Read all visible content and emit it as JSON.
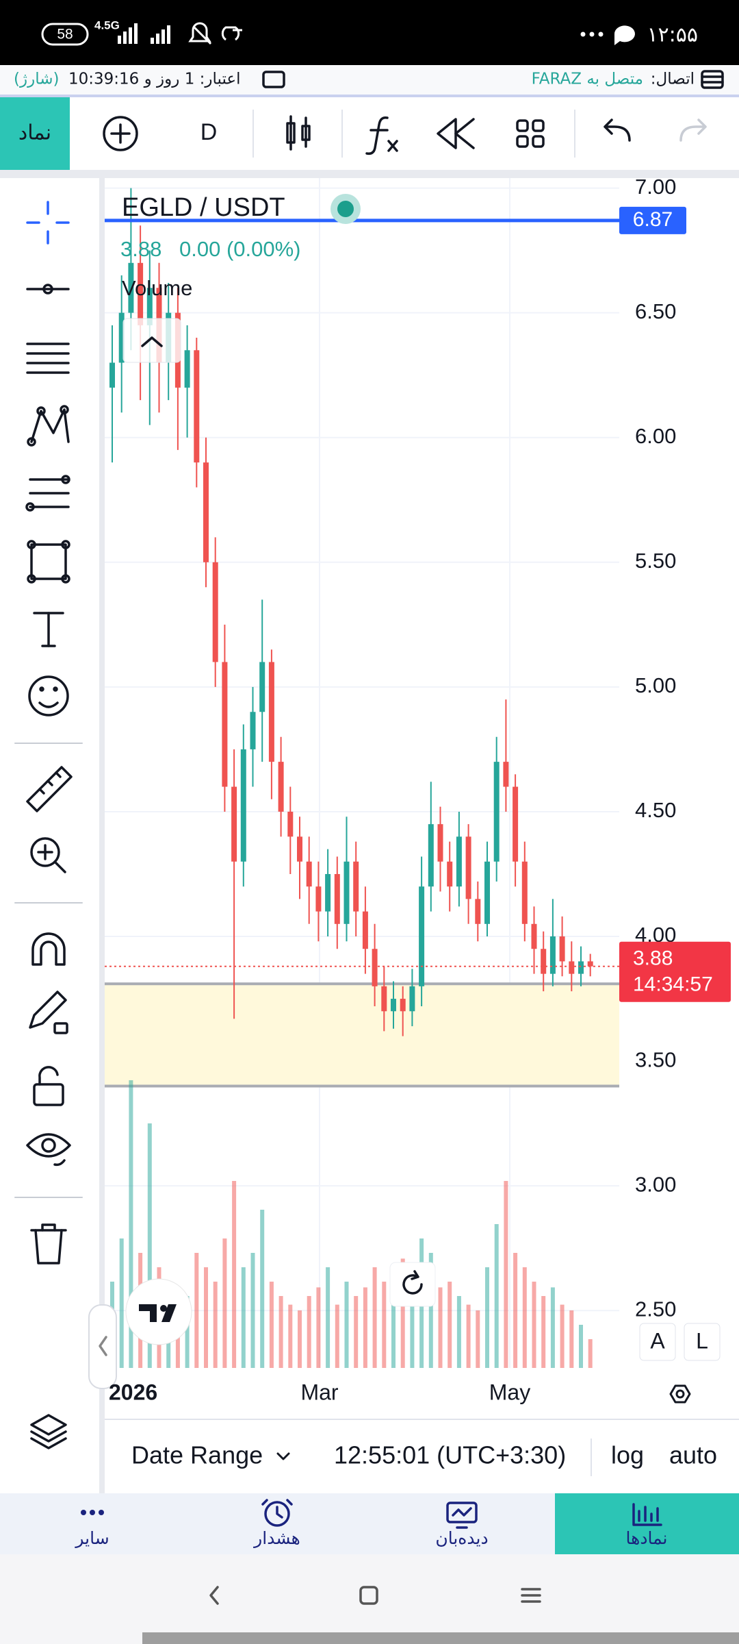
{
  "status_bar": {
    "battery": "58",
    "network": "4.5G",
    "time": "۱۲:۵۵"
  },
  "account_bar": {
    "credit_status": "(شارژ)",
    "credit": "اعتبار: 1 روز و 10:39:16",
    "connection_label": "اتصال:",
    "connection_status": "متصل به FARAZ"
  },
  "toolbar": {
    "symbol_button": "نماد",
    "interval": "D"
  },
  "chart_data": {
    "type": "candlestick",
    "symbol": "EGLD / USDT",
    "last": 3.88,
    "change": "0.00 (0.00%)",
    "volume_label": "Volume",
    "countdown": "14:34:57",
    "horizontal_line": 6.87,
    "zone": [
      3.4,
      3.81
    ],
    "colors": {
      "up": "#26a69a",
      "down": "#ef5350",
      "line": "#2962ff",
      "zone": "#fff9db"
    },
    "grid": true,
    "ylim": [
      2.27,
      7.04
    ],
    "yticks": [
      {
        "value": 7,
        "label": "7.00"
      },
      {
        "value": 6.5,
        "label": "6.50"
      },
      {
        "value": 6,
        "label": "6.00"
      },
      {
        "value": 5.5,
        "label": "5.50"
      },
      {
        "value": 5,
        "label": "5.00"
      },
      {
        "value": 4.5,
        "label": "4.50"
      },
      {
        "value": 4,
        "label": "4.00"
      },
      {
        "value": 3.5,
        "label": "3.50"
      },
      {
        "value": 3,
        "label": "3.00"
      },
      {
        "value": 2.5,
        "label": "2.50"
      }
    ],
    "x_labels": [
      "2026",
      "Mar",
      "May"
    ],
    "ohlc": {
      "open": [
        6.2,
        6.3,
        6.5,
        6.7,
        6.45,
        6.6,
        6.3,
        6.5,
        6.2,
        6.35,
        5.9,
        5.5,
        5.1,
        4.6,
        4.3,
        4.75,
        4.9,
        5.1,
        4.7,
        4.5,
        4.4,
        4.3,
        4.2,
        4.1,
        4.25,
        4.05,
        4.3,
        4.1,
        3.95,
        3.8,
        3.7,
        3.75,
        3.7,
        3.8,
        4.2,
        4.45,
        4.3,
        4.2,
        4.4,
        4.15,
        4.05,
        4.3,
        4.7,
        4.6,
        4.3,
        4.05,
        3.95,
        3.85,
        4.0,
        3.9,
        3.85,
        3.9
      ],
      "high": [
        6.45,
        6.65,
        7.0,
        6.85,
        6.75,
        6.7,
        6.62,
        6.6,
        6.45,
        6.4,
        6.0,
        5.6,
        5.25,
        4.75,
        4.85,
        5.0,
        5.35,
        5.15,
        4.8,
        4.6,
        4.48,
        4.4,
        4.3,
        4.35,
        4.32,
        4.48,
        4.38,
        4.2,
        4.05,
        3.88,
        3.82,
        3.8,
        3.87,
        4.32,
        4.62,
        4.52,
        4.38,
        4.5,
        4.45,
        4.22,
        4.38,
        4.8,
        4.95,
        4.65,
        4.38,
        4.12,
        4.02,
        4.15,
        4.08,
        3.98,
        3.96,
        3.93
      ],
      "low": [
        5.9,
        6.1,
        6.35,
        6.15,
        6.05,
        6.1,
        6.15,
        5.95,
        6.0,
        5.8,
        5.4,
        5.0,
        4.5,
        3.67,
        4.2,
        4.6,
        4.7,
        4.55,
        4.4,
        4.25,
        4.15,
        4.05,
        3.98,
        4.0,
        3.95,
        3.98,
        4.0,
        3.85,
        3.72,
        3.62,
        3.63,
        3.6,
        3.64,
        3.72,
        4.1,
        4.18,
        4.1,
        4.12,
        4.05,
        3.98,
        4.0,
        4.22,
        4.5,
        4.2,
        3.98,
        3.85,
        3.78,
        3.8,
        3.84,
        3.78,
        3.8,
        3.84
      ],
      "close": [
        6.3,
        6.5,
        6.7,
        6.45,
        6.6,
        6.3,
        6.5,
        6.2,
        6.35,
        5.9,
        5.5,
        5.1,
        4.6,
        4.3,
        4.75,
        4.9,
        5.1,
        4.7,
        4.5,
        4.4,
        4.3,
        4.2,
        4.1,
        4.25,
        4.05,
        4.3,
        4.1,
        3.95,
        3.8,
        3.7,
        3.75,
        3.7,
        3.8,
        4.2,
        4.45,
        4.3,
        4.2,
        4.4,
        4.15,
        4.05,
        4.3,
        4.7,
        4.6,
        4.3,
        4.05,
        3.95,
        3.85,
        4.0,
        3.9,
        3.85,
        3.9,
        3.88
      ]
    },
    "volume": [
      30,
      45,
      100,
      40,
      85,
      35,
      30,
      28,
      25,
      40,
      35,
      30,
      45,
      65,
      35,
      40,
      55,
      30,
      25,
      22,
      20,
      25,
      28,
      35,
      22,
      30,
      25,
      28,
      35,
      30,
      25,
      38,
      30,
      45,
      40,
      28,
      30,
      25,
      22,
      20,
      35,
      50,
      65,
      40,
      35,
      30,
      25,
      28,
      22,
      20,
      15,
      10
    ]
  },
  "bottom_bar": {
    "date_range": "Date Range",
    "time": "12:55:01 (UTC+3:30)",
    "log": "log",
    "auto": "auto",
    "scale_a": "A",
    "scale_l": "L"
  },
  "nav": {
    "tabs": [
      "سایر",
      "هشدار",
      "دیده‌بان",
      "نمادها"
    ]
  }
}
